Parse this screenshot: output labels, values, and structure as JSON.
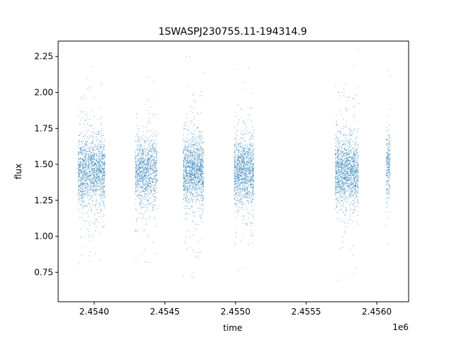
{
  "chart_data": {
    "type": "scatter",
    "title": "1SWASPJ230755.11-194314.9",
    "xlabel": "time",
    "ylabel": "flux",
    "x_offset_label": "1e6",
    "xlim": [
      2453740,
      2456220
    ],
    "ylim": [
      0.545,
      2.357
    ],
    "x_ticks": [
      2453995,
      2454495,
      2454995,
      2455495,
      2455995
    ],
    "x_tick_labels": [
      "2.4540",
      "2.4545",
      "2.4550",
      "2.4555",
      "2.4560"
    ],
    "y_ticks": [
      0.75,
      1.0,
      1.25,
      1.5,
      1.75,
      2.0,
      2.25
    ],
    "y_tick_labels": [
      "0.75",
      "1.00",
      "1.25",
      "1.50",
      "1.75",
      "2.00",
      "2.25"
    ],
    "grid": false,
    "marker_color": "#1f77b4",
    "series": [
      {
        "seasons": [
          {
            "x_start": 2453880,
            "x_end": 2454073,
            "center": 1.45,
            "count": 1600
          },
          {
            "x_start": 2454285,
            "x_end": 2454440,
            "center": 1.46,
            "count": 1200
          },
          {
            "x_start": 2454625,
            "x_end": 2454770,
            "center": 1.45,
            "count": 1400
          },
          {
            "x_start": 2454985,
            "x_end": 2455125,
            "center": 1.45,
            "count": 1300
          },
          {
            "x_start": 2455700,
            "x_end": 2455865,
            "center": 1.45,
            "count": 1500
          },
          {
            "x_start": 2456060,
            "x_end": 2456090,
            "center": 1.5,
            "count": 250
          }
        ],
        "y_range": [
          0.61,
          2.3
        ]
      }
    ]
  }
}
